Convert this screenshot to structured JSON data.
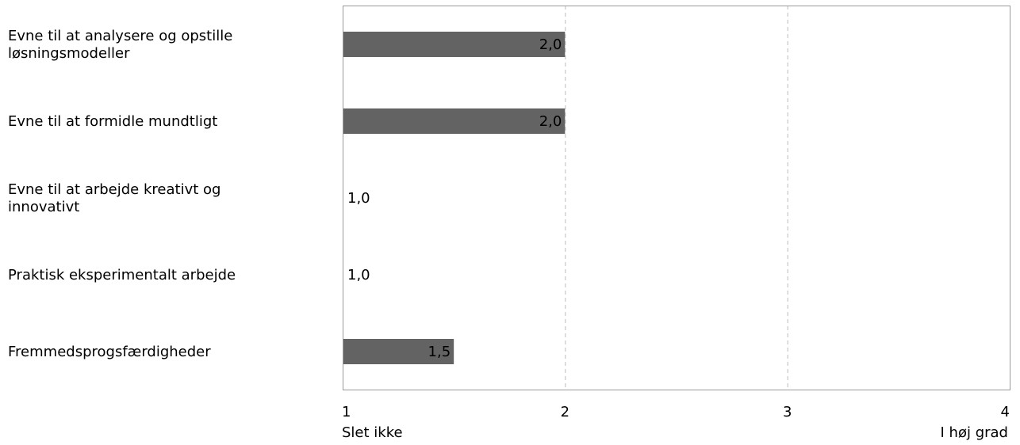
{
  "chart_data": {
    "type": "bar",
    "orientation": "horizontal",
    "categories": [
      [
        "Evne til at analysere og opstille",
        "løsningsmodeller"
      ],
      [
        "Evne til at formidle mundtligt"
      ],
      [
        "Evne til at arbejde kreativt og",
        "innovativt"
      ],
      [
        "Praktisk eksperimentalt arbejde"
      ],
      [
        "Fremmedsprogsfærdigheder"
      ]
    ],
    "values": [
      2.0,
      2.0,
      1.0,
      1.0,
      1.5
    ],
    "value_labels": [
      "2,0",
      "2,0",
      "1,0",
      "1,0",
      "1,5"
    ],
    "xlim": [
      1,
      4
    ],
    "xticks": [
      1,
      2,
      3,
      4
    ],
    "xtick_labels": [
      "1",
      "2",
      "3",
      "4"
    ],
    "xaxis_anchor_left": "Slet ikke",
    "xaxis_anchor_right": "I høj grad",
    "grid": "vertical-dashed",
    "title": "",
    "xlabel": "",
    "ylabel": "",
    "colors": {
      "bar": "#636363",
      "frame": "#9a9a9a",
      "grid": "#bdbdbd"
    }
  }
}
